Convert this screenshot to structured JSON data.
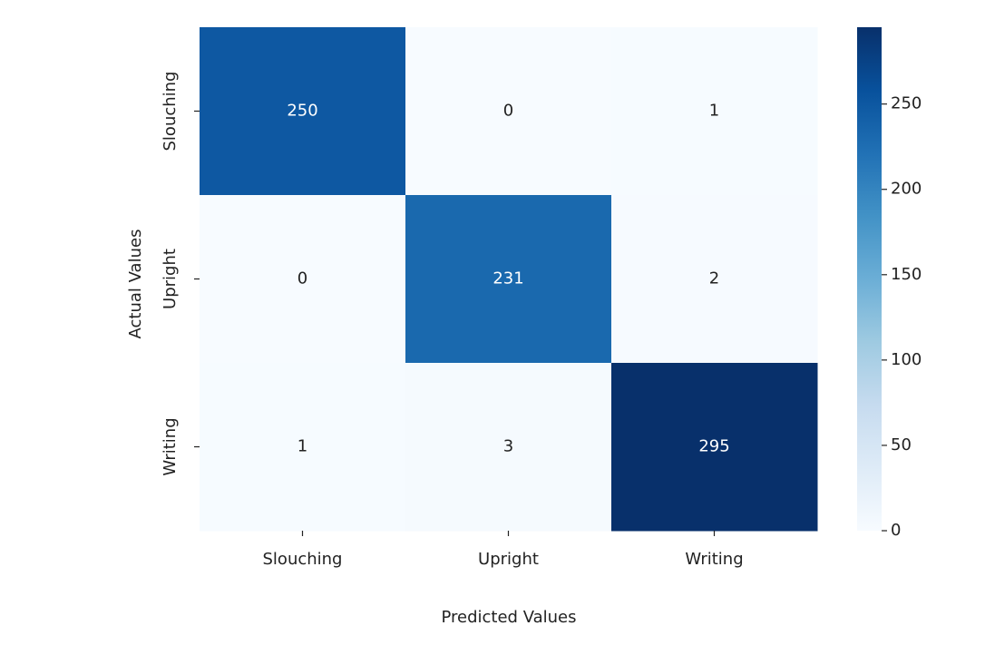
{
  "chart_data": {
    "type": "heatmap",
    "xlabel": "Predicted Values",
    "ylabel": "Actual Values",
    "x_categories": [
      "Slouching",
      "Upright",
      "Writing"
    ],
    "y_categories": [
      "Slouching",
      "Upright",
      "Writing"
    ],
    "values": [
      [
        250,
        0,
        1
      ],
      [
        0,
        231,
        2
      ],
      [
        1,
        3,
        295
      ]
    ],
    "colormap": "Blues",
    "clim": [
      0,
      295
    ],
    "cticks": [
      0,
      50,
      100,
      150,
      200,
      250
    ]
  }
}
